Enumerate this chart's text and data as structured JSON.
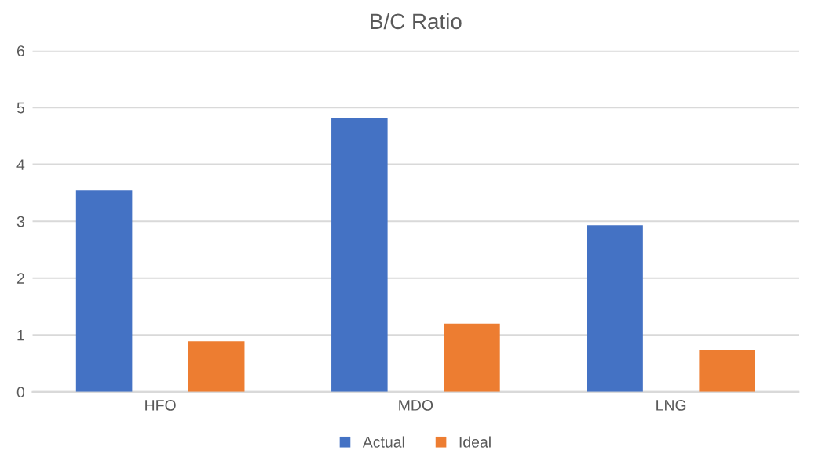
{
  "chart_data": {
    "type": "bar",
    "title": "B/C Ratio",
    "categories": [
      "HFO",
      "MDO",
      "LNG"
    ],
    "series": [
      {
        "name": "Actual",
        "color": "#4472c4",
        "values": [
          3.55,
          4.82,
          2.93
        ]
      },
      {
        "name": "Ideal",
        "color": "#ed7d31",
        "values": [
          0.89,
          1.2,
          0.74
        ]
      }
    ],
    "ylim": [
      0,
      6
    ],
    "yticks": [
      0,
      1,
      2,
      3,
      4,
      5,
      6
    ],
    "grid": "y",
    "legend": "bottom"
  }
}
